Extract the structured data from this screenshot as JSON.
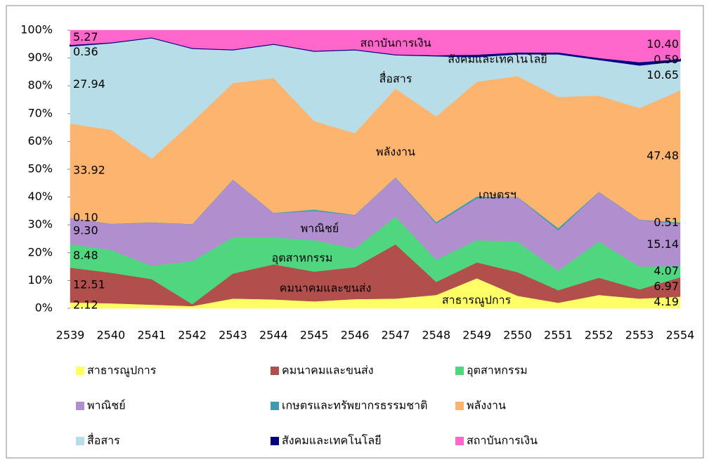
{
  "chart_data": {
    "type": "stacked-area-100",
    "categories": [
      "2539",
      "2540",
      "2541",
      "2542",
      "2543",
      "2544",
      "2545",
      "2546",
      "2547",
      "2548",
      "2549",
      "2550",
      "2551",
      "2552",
      "2553",
      "2554"
    ],
    "ylim": [
      0,
      100
    ],
    "yticks": [
      {
        "value": 0,
        "label": "0%"
      },
      {
        "value": 10,
        "label": "10%"
      },
      {
        "value": 20,
        "label": "20%"
      },
      {
        "value": 30,
        "label": "30%"
      },
      {
        "value": 40,
        "label": "40%"
      },
      {
        "value": 50,
        "label": "50%"
      },
      {
        "value": 60,
        "label": "60%"
      },
      {
        "value": 70,
        "label": "70%"
      },
      {
        "value": 80,
        "label": "80%"
      },
      {
        "value": 90,
        "label": "90%"
      },
      {
        "value": 100,
        "label": "100%"
      }
    ],
    "series": [
      {
        "name": "สาธารณูปการ",
        "color": "#ffff66",
        "values": [
          2.12,
          1.8,
          1.3,
          0.8,
          3.5,
          3.2,
          2.5,
          3.3,
          3.5,
          4.8,
          10.8,
          4.5,
          2.0,
          4.8,
          3.5,
          4.19
        ],
        "value_labels": [
          "2.12",
          null,
          null,
          null,
          null,
          null,
          null,
          null,
          null,
          null,
          null,
          null,
          null,
          null,
          null,
          "4.19"
        ]
      },
      {
        "name": "คมนาคมและขนส่ง",
        "color": "#b14f4c",
        "values": [
          12.51,
          11.0,
          9.2,
          0.7,
          9.0,
          12.6,
          10.7,
          11.5,
          19.5,
          4.7,
          5.7,
          8.5,
          4.5,
          6.2,
          3.3,
          6.97
        ],
        "value_labels": [
          "12.51",
          null,
          null,
          null,
          null,
          null,
          null,
          null,
          null,
          null,
          null,
          null,
          null,
          null,
          null,
          "6.97"
        ]
      },
      {
        "name": "อุตสาหกรรม",
        "color": "#4fd67f",
        "values": [
          8.48,
          8.2,
          4.8,
          15.5,
          13.0,
          9.7,
          11.3,
          6.7,
          10.0,
          8.0,
          8.0,
          11.0,
          7.0,
          13.0,
          8.2,
          4.07
        ],
        "value_labels": [
          "8.48",
          null,
          null,
          null,
          null,
          null,
          null,
          null,
          null,
          null,
          null,
          null,
          null,
          null,
          null,
          "4.07"
        ]
      },
      {
        "name": "พาณิชย์",
        "color": "#b18fcf",
        "values": [
          9.3,
          9.3,
          15.5,
          13.2,
          20.7,
          8.7,
          10.5,
          12.0,
          14.0,
          13.0,
          15.0,
          16.0,
          14.5,
          17.8,
          16.8,
          15.14
        ],
        "value_labels": [
          "9.30",
          null,
          null,
          null,
          null,
          null,
          null,
          null,
          null,
          null,
          null,
          null,
          null,
          null,
          null,
          "15.14"
        ]
      },
      {
        "name": "เกษตรและทรัพยากรธรรมชาติ",
        "color": "#3f9cb0",
        "values": [
          0.1,
          0.1,
          0.1,
          0.1,
          0.1,
          0.1,
          0.5,
          0.1,
          0.1,
          0.5,
          0.7,
          0.1,
          0.8,
          0.1,
          0.1,
          0.51
        ],
        "value_labels": [
          "0.10",
          null,
          null,
          null,
          null,
          null,
          null,
          null,
          null,
          null,
          null,
          null,
          null,
          null,
          null,
          "0.51"
        ]
      },
      {
        "name": "พลังงาน",
        "color": "#fdb46e",
        "values": [
          33.92,
          33.8,
          22.9,
          36.7,
          34.7,
          48.5,
          31.8,
          29.4,
          31.9,
          38.0,
          41.3,
          43.4,
          47.2,
          34.6,
          40.1,
          47.48
        ],
        "value_labels": [
          "33.92",
          null,
          null,
          null,
          null,
          null,
          null,
          null,
          null,
          null,
          null,
          null,
          null,
          null,
          null,
          "47.48"
        ]
      },
      {
        "name": "สื่อสาร",
        "color": "#b7dde8",
        "values": [
          27.94,
          31.3,
          43.5,
          26.5,
          12.0,
          12.2,
          25.2,
          30.0,
          12.2,
          21.8,
          9.0,
          8.0,
          15.5,
          13.0,
          15.5,
          10.65
        ],
        "value_labels": [
          "27.94",
          null,
          null,
          null,
          null,
          null,
          null,
          null,
          null,
          null,
          null,
          null,
          null,
          null,
          null,
          "10.65"
        ]
      },
      {
        "name": "สังคมและเทคโนโลยี",
        "color": "#000080",
        "values": [
          0.36,
          0.1,
          0.1,
          0.1,
          0.1,
          0.1,
          0.1,
          0.1,
          0.1,
          0.2,
          0.7,
          0.5,
          0.5,
          0.5,
          1.0,
          0.59
        ],
        "value_labels": [
          "0.36",
          null,
          null,
          null,
          null,
          null,
          null,
          null,
          null,
          null,
          null,
          null,
          null,
          null,
          null,
          "0.59"
        ]
      },
      {
        "name": "สถาบันการเงิน",
        "color": "#ff66cc",
        "values": [
          5.27,
          4.4,
          2.6,
          6.4,
          6.9,
          4.9,
          7.4,
          6.9,
          8.7,
          9.0,
          8.8,
          8.0,
          8.0,
          10.0,
          11.5,
          10.4
        ],
        "value_labels": [
          "5.27",
          null,
          null,
          null,
          null,
          null,
          null,
          null,
          null,
          null,
          null,
          null,
          null,
          null,
          null,
          "10.40"
        ]
      }
    ],
    "annotations": [
      "สถาบันการเงิน",
      "สังคมและเทคโนโลยี",
      "สื่อสาร",
      "พลังงาน",
      "เกษตรฯ",
      "พาณิชย์",
      "อุตสาหกรรม",
      "คมนาคมและขนส่ง",
      "สาธารณูปการ"
    ],
    "legend": "bottom"
  }
}
